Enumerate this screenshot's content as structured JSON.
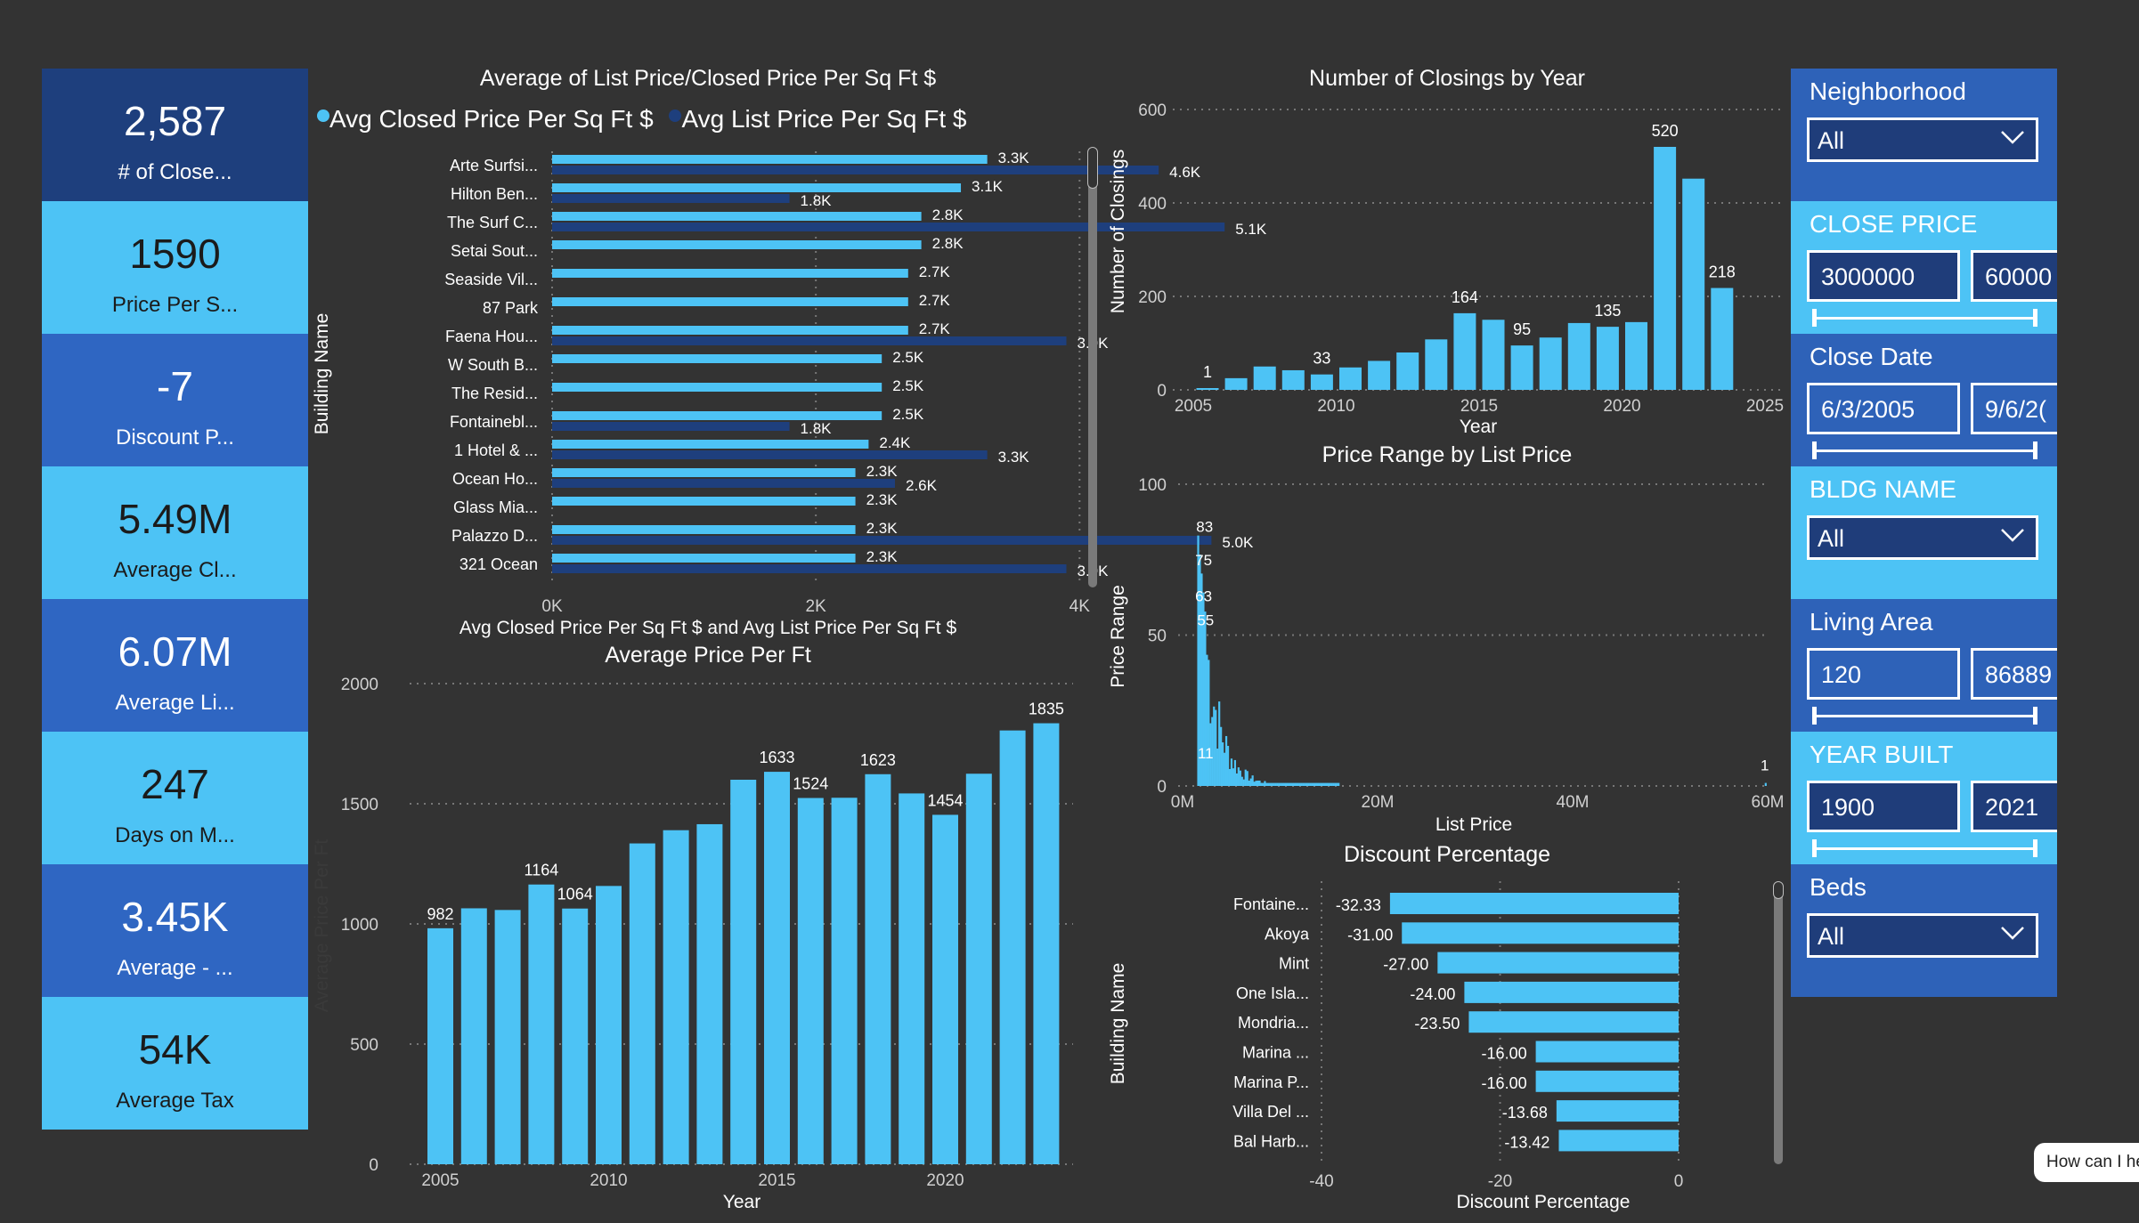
{
  "kpis": [
    {
      "value": "2,587",
      "label": "# of Close..."
    },
    {
      "value": "1590",
      "label": "Price Per S..."
    },
    {
      "value": "-7",
      "label": "Discount P..."
    },
    {
      "value": "5.49M",
      "label": "Average Cl..."
    },
    {
      "value": "6.07M",
      "label": "Average Li..."
    },
    {
      "value": "247",
      "label": "Days on M..."
    },
    {
      "value": "3.45K",
      "label": "Average - ..."
    },
    {
      "value": "54K",
      "label": "Average Tax"
    }
  ],
  "colors": {
    "background": "#333333",
    "light_blue": "#4dc3f5",
    "dark_blue": "#1e3f7d",
    "kpi_dark": "#1e3f7d",
    "kpi_mid": "#2f66c2",
    "kpi_light": "#4dc3f5",
    "slicer_dark": "#2e62b8",
    "slicer_light": "#4dc3f5"
  },
  "chart_data": [
    {
      "id": "list_vs_closed",
      "type": "bar",
      "orientation": "horizontal",
      "title": "Average of List Price/Closed Price Per Sq Ft $",
      "xlabel": "Avg Closed Price Per Sq Ft $ and Avg List Price Per Sq Ft $",
      "ylabel": "Building Name",
      "xlim": [
        0,
        5200
      ],
      "xticks": [
        "0K",
        "2K",
        "4K"
      ],
      "legend": "top-left",
      "categories": [
        "Arte Surfsi...",
        "Hilton Ben...",
        "The Surf C...",
        "Setai Sout...",
        "Seaside Vil...",
        "87 Park",
        "Faena Hou...",
        "W South B...",
        "The Resid...",
        "Fontainebl...",
        "1 Hotel & ...",
        "Ocean Ho...",
        "Glass Mia...",
        "Palazzo D...",
        "321 Ocean"
      ],
      "series": [
        {
          "name": "Avg Closed Price Per Sq Ft $",
          "color": "#4dc3f5",
          "values": [
            3300,
            3100,
            2800,
            2800,
            2700,
            2700,
            2700,
            2500,
            2500,
            2500,
            2400,
            2300,
            2300,
            2300,
            2300
          ],
          "labels": [
            "3.3K",
            "3.1K",
            "2.8K",
            "2.8K",
            "2.7K",
            "2.7K",
            "2.7K",
            "2.5K",
            "2.5K",
            "2.5K",
            "2.4K",
            "2.3K",
            "2.3K",
            "2.3K",
            "2.3K"
          ]
        },
        {
          "name": "Avg List Price Per Sq Ft $",
          "color": "#1e3f7d",
          "values": [
            4600,
            1800,
            5100,
            null,
            null,
            null,
            3900,
            null,
            null,
            1800,
            3300,
            2600,
            null,
            5000,
            3900
          ],
          "labels": [
            "4.6K",
            "1.8K",
            "5.1K",
            "",
            "",
            "",
            "3.9K",
            "",
            "",
            "1.8K",
            "3.3K",
            "2.6K",
            "",
            "5.0K",
            "3.9K"
          ]
        }
      ]
    },
    {
      "id": "closings_by_year",
      "type": "bar",
      "title": "Number of Closings by Year",
      "xlabel": "Year",
      "ylabel": "Number of Closings",
      "ylim": [
        0,
        600
      ],
      "yticks": [
        "0",
        "200",
        "400",
        "600"
      ],
      "xticks": [
        "2005",
        "2010",
        "2015",
        "2020",
        "2025"
      ],
      "x": [
        2005,
        2006,
        2007,
        2008,
        2009,
        2010,
        2011,
        2012,
        2013,
        2014,
        2015,
        2016,
        2017,
        2018,
        2019,
        2020,
        2021,
        2022,
        2023
      ],
      "values": [
        1,
        25,
        50,
        42,
        33,
        48,
        62,
        80,
        108,
        164,
        150,
        95,
        112,
        143,
        135,
        145,
        520,
        452,
        218
      ],
      "data_labels": {
        "2005": "1",
        "2009": "33",
        "2014": "164",
        "2016": "95",
        "2019": "135",
        "2021": "520",
        "2023": "218"
      }
    },
    {
      "id": "price_range",
      "type": "bar",
      "title": "Price Range by List Price",
      "xlabel": "List Price",
      "ylabel": "Price Range",
      "ylim": [
        0,
        100
      ],
      "xlim": [
        0,
        60
      ],
      "yticks": [
        "0",
        "50",
        "100"
      ],
      "xticks": [
        "0M",
        "20M",
        "40M",
        "60M"
      ],
      "data_labels": [
        "83",
        "75",
        "63",
        "55",
        "11",
        "1"
      ]
    },
    {
      "id": "avg_price_per_ft",
      "type": "bar",
      "title": "Average Price Per Ft",
      "xlabel": "Year",
      "ylabel": "Average Price Per Ft",
      "ylim": [
        0,
        2000
      ],
      "yticks": [
        "0",
        "500",
        "1000",
        "1500",
        "2000"
      ],
      "xticks": [
        "2005",
        "2010",
        "2015",
        "2020"
      ],
      "x": [
        2005,
        2006,
        2007,
        2008,
        2009,
        2010,
        2011,
        2012,
        2013,
        2014,
        2015,
        2016,
        2017,
        2018,
        2019,
        2020,
        2021,
        2022,
        2023
      ],
      "values": [
        982,
        1065,
        1058,
        1164,
        1064,
        1158,
        1335,
        1390,
        1415,
        1600,
        1633,
        1524,
        1525,
        1623,
        1543,
        1454,
        1625,
        1805,
        1835
      ],
      "data_labels": {
        "2005": "982",
        "2008": "1164",
        "2009": "1064",
        "2015": "1633",
        "2016": "1524",
        "2018": "1623",
        "2020": "1454",
        "2023": "1835"
      }
    },
    {
      "id": "discount_pct",
      "type": "bar",
      "orientation": "horizontal",
      "title": "Discount Percentage",
      "xlabel": "Discount Percentage",
      "ylabel": "Building Name",
      "xlim": [
        -40,
        0
      ],
      "xticks": [
        "-40",
        "-20",
        "0"
      ],
      "categories": [
        "Fontaine...",
        "Akoya",
        "Mint",
        "One Isla...",
        "Mondria...",
        "Marina ...",
        "Marina P...",
        "Villa Del ...",
        "Bal Harb..."
      ],
      "values": [
        -32.33,
        -31.0,
        -27.0,
        -24.0,
        -23.5,
        -16.0,
        -16.0,
        -13.68,
        -13.42
      ],
      "labels": [
        "-32.33",
        "-31.00",
        "-27.00",
        "-24.00",
        "-23.50",
        "-16.00",
        "-16.00",
        "-13.68",
        "-13.42"
      ]
    }
  ],
  "slicers": {
    "neighborhood": {
      "title": "Neighborhood",
      "value": "All"
    },
    "close_price": {
      "title": "CLOSE PRICE",
      "min": "3000000",
      "max": "60000"
    },
    "close_date": {
      "title": "Close Date",
      "min": "6/3/2005",
      "max": "9/6/2("
    },
    "bldg_name": {
      "title": "BLDG NAME",
      "value": "All"
    },
    "living_area": {
      "title": "Living Area",
      "min": "120",
      "max": "86889"
    },
    "year_built": {
      "title": "YEAR BUILT",
      "min": "1900",
      "max": "2021"
    },
    "beds": {
      "title": "Beds",
      "value": "All"
    }
  },
  "chat_bubble": {
    "text": "How can I he"
  }
}
